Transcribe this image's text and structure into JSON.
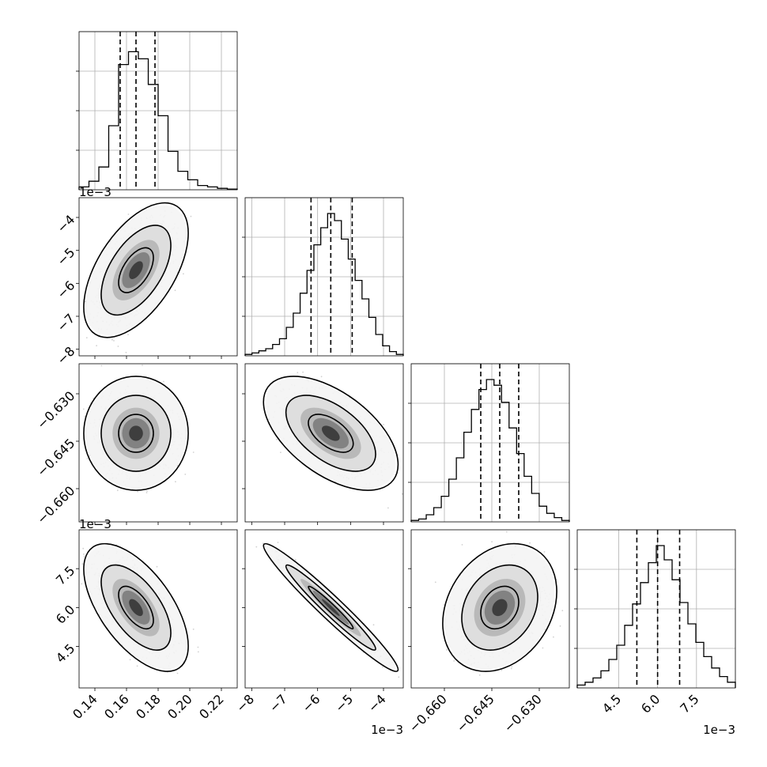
{
  "chart_data": {
    "type": "corner",
    "title": "",
    "quantiles_shown": [
      0.16,
      0.5,
      0.84
    ],
    "params": [
      {
        "range": [
          0.13,
          0.23
        ],
        "ticks": [
          0.14,
          0.16,
          0.18,
          0.2,
          0.22
        ],
        "tick_labels": [
          "0.14",
          "0.16",
          "0.18",
          "0.20",
          "0.22"
        ],
        "offset_label": "",
        "quantiles": [
          0.156,
          0.166,
          0.178
        ],
        "median": 0.166,
        "sd": 0.011
      },
      {
        "range": [
          -8.2,
          -3.4
        ],
        "ticks": [
          -8,
          -7,
          -6,
          -5,
          -4
        ],
        "tick_labels": [
          "−8",
          "−7",
          "−6",
          "−5",
          "−4"
        ],
        "offset_label": "1e−3",
        "quantiles": [
          -6.2,
          -5.6,
          -4.95
        ],
        "median": -5.6,
        "sd": 0.68
      },
      {
        "range": [
          -0.6705,
          -0.6205
        ],
        "ticks": [
          -0.63,
          -0.645,
          -0.66
        ],
        "tick_labels": [
          "−0.630",
          "−0.645",
          "−0.660"
        ],
        "offset_label": "",
        "quantiles": [
          -0.6485,
          -0.6425,
          -0.6365
        ],
        "median": -0.6425,
        "sd": 0.006
      },
      {
        "range": [
          2.9,
          9.0
        ],
        "ticks": [
          4.5,
          6.0,
          7.5
        ],
        "tick_labels": [
          "4.5",
          "6.0",
          "7.5"
        ],
        "offset_label": "1e−3",
        "quantiles": [
          5.2,
          6.0,
          6.85
        ],
        "median": 6.0,
        "sd": 0.82
      }
    ],
    "correlations": {
      "1-0": 0.55,
      "2-0": 0.0,
      "2-1": -0.55,
      "3-0": -0.6,
      "3-1": -0.97,
      "3-2": 0.25
    },
    "histograms": [
      {
        "counts": [
          0.02,
          0.06,
          0.16,
          0.45,
          0.88,
          0.97,
          0.92,
          0.74,
          0.52,
          0.27,
          0.13,
          0.07,
          0.03,
          0.02,
          0.01,
          0.005
        ]
      },
      {
        "counts": [
          0.01,
          0.02,
          0.035,
          0.05,
          0.08,
          0.12,
          0.2,
          0.3,
          0.44,
          0.6,
          0.78,
          0.9,
          1.0,
          0.95,
          0.82,
          0.68,
          0.53,
          0.4,
          0.27,
          0.15,
          0.07,
          0.03,
          0.01
        ]
      },
      {
        "counts": [
          0.01,
          0.02,
          0.05,
          0.1,
          0.18,
          0.3,
          0.45,
          0.63,
          0.79,
          0.93,
          1.0,
          0.96,
          0.84,
          0.66,
          0.48,
          0.32,
          0.2,
          0.11,
          0.06,
          0.03,
          0.01
        ]
      },
      {
        "counts": [
          0.02,
          0.04,
          0.07,
          0.12,
          0.2,
          0.3,
          0.44,
          0.59,
          0.74,
          0.88,
          1.0,
          0.9,
          0.76,
          0.6,
          0.45,
          0.32,
          0.22,
          0.14,
          0.08,
          0.04
        ]
      }
    ]
  }
}
